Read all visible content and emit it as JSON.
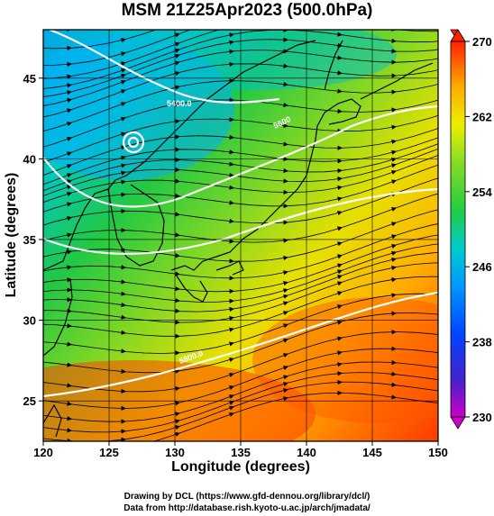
{
  "title": "MSM 21Z25Apr2023 (500.0hPa)",
  "xlabel": "Longitude (degrees)",
  "ylabel": "Latitude  (degrees)",
  "credits": [
    "Drawing by DCL (https://www.gfd-dennou.org/library/dcl/)",
    "Data from http://database.rish.kyoto-u.ac.jp/arch/jmadata/"
  ],
  "map": {
    "lon_range": [
      120,
      150
    ],
    "lat_range": [
      22.5,
      48
    ],
    "x_ticks": [
      120,
      125,
      130,
      135,
      140,
      145,
      150
    ],
    "y_ticks": [
      25,
      30,
      35,
      40,
      45
    ],
    "contour_labels": [
      "5400.0",
      "5600",
      "5800.0"
    ]
  },
  "colorbar": {
    "min": 230,
    "max": 270,
    "ticks": [
      230,
      238,
      246,
      254,
      262,
      270
    ],
    "colors": [
      "#cc00cc",
      "#2222cc",
      "#0088ff",
      "#00cccc",
      "#22cc44",
      "#88dd22",
      "#eeee00",
      "#ffaa00",
      "#ff5500",
      "#ff2200"
    ]
  }
}
